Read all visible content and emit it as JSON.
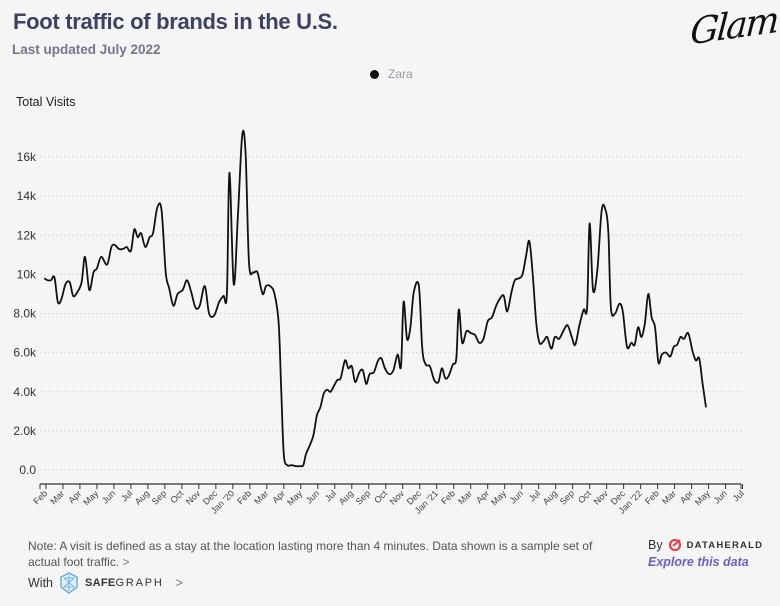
{
  "header": {
    "title": "Foot traffic of brands in the U.S.",
    "subtitle": "Last updated July 2022",
    "logo": "Glam"
  },
  "legend": {
    "items": [
      {
        "label": "Zara",
        "color": "#111111"
      }
    ]
  },
  "footer": {
    "note": "Note: A visit is defined as a stay at the location lasting more than 4 minutes. Data shown is a sample set of actual foot traffic.",
    "note_chevron": ">",
    "with_label": "With",
    "safegraph_bold": "SAFE",
    "safegraph_rest": "GRAPH",
    "safegraph_chevron": ">",
    "by_label": "By",
    "dataherald": "DATAHERALD",
    "explore_link": "Explore this data"
  },
  "chart_data": {
    "type": "line",
    "title": "Foot traffic of brands in the U.S.",
    "ylabel": "Total Visits",
    "xlabel": "",
    "ylim": [
      0,
      17000
    ],
    "grid": true,
    "legend_position": "top-center",
    "y_ticks": [
      0,
      2000,
      4000,
      6000,
      8000,
      10000,
      12000,
      14000,
      16000
    ],
    "y_tick_labels": [
      "0.0",
      "2.0k",
      "4.0k",
      "6.0k",
      "8.0k",
      "10k",
      "12k",
      "14k",
      "16k"
    ],
    "x_ticks": [
      "Feb",
      "Mar",
      "Apr",
      "May",
      "Jun",
      "Jul",
      "Aug",
      "Sep",
      "Oct",
      "Nov",
      "Dec",
      "Jan '20",
      "Feb",
      "Mar",
      "Apr",
      "May",
      "Jun",
      "Jul",
      "Aug",
      "Sep",
      "Oct",
      "Nov",
      "Dec",
      "Jan '21",
      "Feb",
      "Mar",
      "Apr",
      "May",
      "Jun",
      "Jul",
      "Aug",
      "Sep",
      "Oct",
      "Nov",
      "Dec",
      "Jan '22",
      "Feb",
      "Mar",
      "Apr",
      "May",
      "Jun",
      "Jul"
    ],
    "x_range_months": [
      0,
      41.2
    ],
    "series": [
      {
        "name": "Zara",
        "color": "#111111",
        "points": [
          [
            -0.1,
            9800
          ],
          [
            0.1,
            9700
          ],
          [
            0.3,
            9700
          ],
          [
            0.5,
            9850
          ],
          [
            0.7,
            8600
          ],
          [
            0.9,
            8700
          ],
          [
            1.15,
            9500
          ],
          [
            1.4,
            9600
          ],
          [
            1.6,
            8900
          ],
          [
            1.85,
            9100
          ],
          [
            2.1,
            9600
          ],
          [
            2.3,
            10900
          ],
          [
            2.55,
            9200
          ],
          [
            2.8,
            10100
          ],
          [
            3.0,
            10300
          ],
          [
            3.25,
            10900
          ],
          [
            3.6,
            10500
          ],
          [
            3.85,
            11400
          ],
          [
            4.05,
            11500
          ],
          [
            4.3,
            11300
          ],
          [
            4.55,
            11300
          ],
          [
            4.75,
            11400
          ],
          [
            5.0,
            11200
          ],
          [
            5.2,
            12300
          ],
          [
            5.4,
            11900
          ],
          [
            5.6,
            12100
          ],
          [
            5.85,
            11400
          ],
          [
            6.1,
            11900
          ],
          [
            6.3,
            12100
          ],
          [
            6.55,
            13400
          ],
          [
            6.8,
            13300
          ],
          [
            7.05,
            10100
          ],
          [
            7.25,
            9300
          ],
          [
            7.5,
            8400
          ],
          [
            7.75,
            9000
          ],
          [
            8.05,
            9200
          ],
          [
            8.3,
            9700
          ],
          [
            8.55,
            9100
          ],
          [
            8.8,
            8300
          ],
          [
            9.05,
            8400
          ],
          [
            9.35,
            9400
          ],
          [
            9.6,
            8000
          ],
          [
            9.9,
            7900
          ],
          [
            10.2,
            8600
          ],
          [
            10.45,
            8900
          ],
          [
            10.65,
            9000
          ],
          [
            10.8,
            15200
          ],
          [
            11.05,
            9500
          ],
          [
            11.3,
            13000
          ],
          [
            11.55,
            17100
          ],
          [
            11.75,
            16200
          ],
          [
            11.95,
            10600
          ],
          [
            12.2,
            10100
          ],
          [
            12.45,
            10100
          ],
          [
            12.75,
            9000
          ],
          [
            12.95,
            9400
          ],
          [
            13.2,
            9400
          ],
          [
            13.45,
            9000
          ],
          [
            13.7,
            7500
          ],
          [
            13.85,
            4000
          ],
          [
            14.0,
            800
          ],
          [
            14.2,
            250
          ],
          [
            14.45,
            250
          ],
          [
            14.7,
            200
          ],
          [
            14.95,
            200
          ],
          [
            15.15,
            250
          ],
          [
            15.3,
            800
          ],
          [
            15.55,
            1300
          ],
          [
            15.75,
            1800
          ],
          [
            15.95,
            2800
          ],
          [
            16.15,
            3200
          ],
          [
            16.35,
            3900
          ],
          [
            16.55,
            4100
          ],
          [
            16.75,
            4000
          ],
          [
            16.95,
            4300
          ],
          [
            17.15,
            4600
          ],
          [
            17.35,
            4700
          ],
          [
            17.6,
            5600
          ],
          [
            17.8,
            5200
          ],
          [
            18.0,
            5300
          ],
          [
            18.2,
            4500
          ],
          [
            18.45,
            5000
          ],
          [
            18.65,
            5100
          ],
          [
            18.85,
            4400
          ],
          [
            19.05,
            4900
          ],
          [
            19.3,
            5000
          ],
          [
            19.55,
            5600
          ],
          [
            19.75,
            5700
          ],
          [
            19.95,
            5200
          ],
          [
            20.2,
            4900
          ],
          [
            20.45,
            5100
          ],
          [
            20.7,
            5900
          ],
          [
            20.9,
            5300
          ],
          [
            21.05,
            8600
          ],
          [
            21.25,
            6700
          ],
          [
            21.45,
            7300
          ],
          [
            21.65,
            9100
          ],
          [
            21.95,
            9400
          ],
          [
            22.15,
            6200
          ],
          [
            22.35,
            5400
          ],
          [
            22.6,
            5300
          ],
          [
            22.85,
            4600
          ],
          [
            23.1,
            4500
          ],
          [
            23.3,
            5200
          ],
          [
            23.5,
            4700
          ],
          [
            23.7,
            4800
          ],
          [
            23.95,
            5400
          ],
          [
            24.15,
            5700
          ],
          [
            24.3,
            8200
          ],
          [
            24.5,
            6500
          ],
          [
            24.75,
            7100
          ],
          [
            25.0,
            7000
          ],
          [
            25.25,
            6900
          ],
          [
            25.5,
            6500
          ],
          [
            25.75,
            6700
          ],
          [
            26.0,
            7600
          ],
          [
            26.25,
            7800
          ],
          [
            26.5,
            8400
          ],
          [
            26.75,
            8800
          ],
          [
            26.95,
            8900
          ],
          [
            27.15,
            8100
          ],
          [
            27.4,
            9100
          ],
          [
            27.6,
            9700
          ],
          [
            27.85,
            9800
          ],
          [
            28.05,
            10000
          ],
          [
            28.25,
            10900
          ],
          [
            28.45,
            11700
          ],
          [
            28.65,
            10000
          ],
          [
            28.85,
            7600
          ],
          [
            29.05,
            6500
          ],
          [
            29.3,
            6600
          ],
          [
            29.5,
            6800
          ],
          [
            29.75,
            6200
          ],
          [
            29.95,
            6800
          ],
          [
            30.2,
            6700
          ],
          [
            30.45,
            7100
          ],
          [
            30.7,
            7400
          ],
          [
            30.95,
            6800
          ],
          [
            31.15,
            6400
          ],
          [
            31.4,
            7400
          ],
          [
            31.65,
            8200
          ],
          [
            31.85,
            8300
          ],
          [
            32.0,
            12600
          ],
          [
            32.2,
            9200
          ],
          [
            32.45,
            10200
          ],
          [
            32.7,
            13200
          ],
          [
            32.9,
            13400
          ],
          [
            33.1,
            12200
          ],
          [
            33.25,
            8300
          ],
          [
            33.5,
            8000
          ],
          [
            33.75,
            8500
          ],
          [
            33.95,
            8100
          ],
          [
            34.2,
            6300
          ],
          [
            34.45,
            6500
          ],
          [
            34.65,
            6400
          ],
          [
            34.85,
            7300
          ],
          [
            35.05,
            6800
          ],
          [
            35.25,
            7500
          ],
          [
            35.45,
            9000
          ],
          [
            35.65,
            7800
          ],
          [
            35.85,
            7300
          ],
          [
            36.05,
            5500
          ],
          [
            36.25,
            5900
          ],
          [
            36.5,
            6000
          ],
          [
            36.75,
            5800
          ],
          [
            36.95,
            6300
          ],
          [
            37.15,
            6400
          ],
          [
            37.35,
            6800
          ],
          [
            37.55,
            6700
          ],
          [
            37.8,
            7000
          ],
          [
            38.05,
            6100
          ],
          [
            38.25,
            5600
          ],
          [
            38.45,
            5700
          ],
          [
            38.65,
            4400
          ],
          [
            38.85,
            3200
          ]
        ]
      }
    ]
  }
}
